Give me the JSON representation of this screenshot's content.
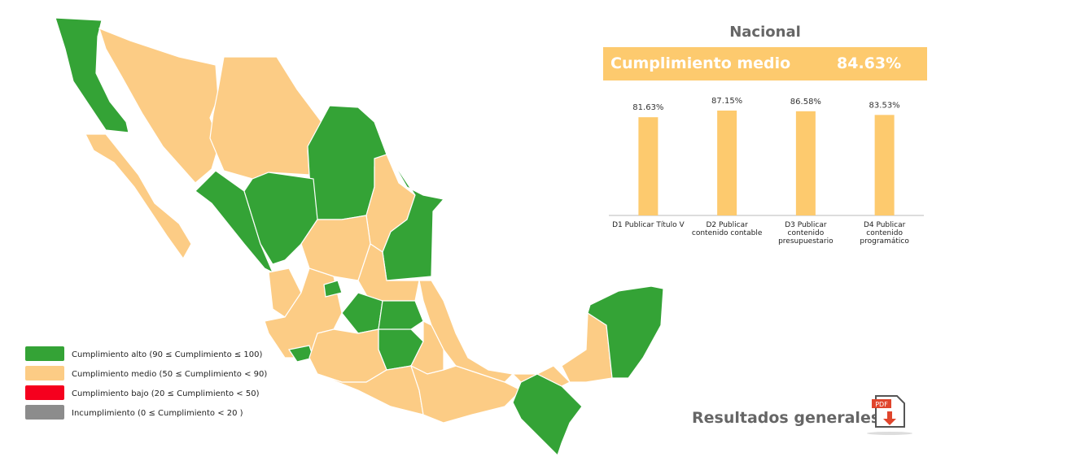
{
  "title": "Nacional",
  "summary": {
    "label": "Cumplimiento medio",
    "value": "84.63%"
  },
  "chart_data": {
    "type": "bar",
    "categories": [
      "D1 Publicar Título V",
      "D2 Publicar contenido contable",
      "D3 Publicar contenido presupuestario",
      "D4 Publicar contenido programático"
    ],
    "values": [
      81.63,
      87.15,
      86.58,
      83.53
    ],
    "value_labels": [
      "81.63%",
      "87.15%",
      "86.58%",
      "83.53%"
    ],
    "color": "#fdca6e"
  },
  "legend": [
    {
      "label": "Cumplimiento alto (90 ≤ Cumplimiento ≤ 100)",
      "color": "#34a336"
    },
    {
      "label": "Cumplimiento medio (50 ≤ Cumplimiento  < 90)",
      "color": "#fccc85"
    },
    {
      "label": "Cumplimiento bajo (20 ≤ Cumplimiento < 50)",
      "color": "#f5001e"
    },
    {
      "label": "Incumplimiento (0 ≤ Cumplimiento < 20 )",
      "color": "#8c8c8c"
    }
  ],
  "link": "Resultados generales"
}
